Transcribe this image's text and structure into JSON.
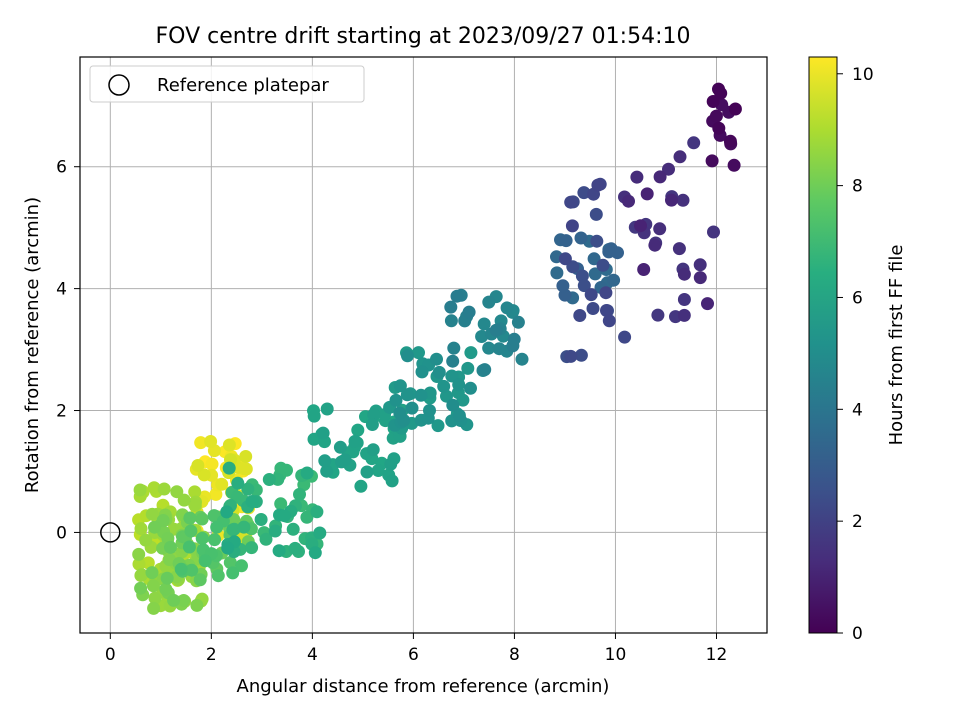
{
  "chart_data": {
    "type": "scatter",
    "title": "FOV centre drift starting at 2023/09/27 01:54:10",
    "xlabel": "Angular distance from reference (arcmin)",
    "ylabel": "Rotation from reference (arcmin)",
    "xlim": [
      -0.6,
      13.0
    ],
    "ylim": [
      -1.65,
      7.8
    ],
    "xticks": [
      0,
      2,
      4,
      6,
      8,
      10,
      12
    ],
    "yticks": [
      0,
      2,
      4,
      6
    ],
    "grid": true,
    "legend": {
      "placement": "top-left",
      "entries": [
        "Reference platepar"
      ]
    },
    "reference": {
      "x": 0,
      "y": 0,
      "label": "Reference platepar"
    },
    "colorbar": {
      "label": "Hours from first FF file",
      "colormap": "viridis",
      "range": [
        0,
        10.3
      ],
      "ticks": [
        0,
        2,
        4,
        6,
        8,
        10
      ]
    },
    "point_groups": [
      {
        "t": [
          0.0,
          0.35
        ],
        "x": [
          11.8,
          12.45
        ],
        "y": [
          5.85,
          7.4
        ],
        "n": 14
      },
      {
        "t": [
          1.0,
          1.7
        ],
        "x": [
          10.0,
          11.95
        ],
        "y": [
          3.5,
          6.4
        ],
        "n": 30
      },
      {
        "t": [
          2.0,
          2.6
        ],
        "x": [
          9.0,
          10.2
        ],
        "y": [
          2.45,
          5.8
        ],
        "n": 25
      },
      {
        "t": [
          3.0,
          3.6
        ],
        "x": [
          8.8,
          10.1
        ],
        "y": [
          3.8,
          4.9
        ],
        "n": 20
      },
      {
        "t": [
          4.3,
          4.8
        ],
        "x": [
          6.7,
          8.3
        ],
        "y": [
          2.6,
          3.9
        ],
        "n": 30
      },
      {
        "t": [
          5.0,
          5.6
        ],
        "x": [
          5.5,
          7.2
        ],
        "y": [
          1.7,
          3.0
        ],
        "n": 45
      },
      {
        "t": [
          5.7,
          6.1
        ],
        "x": [
          4.0,
          5.8
        ],
        "y": [
          0.75,
          2.05
        ],
        "n": 45
      },
      {
        "t": [
          6.2,
          7.0
        ],
        "x": [
          2.3,
          4.3
        ],
        "y": [
          -0.35,
          1.1
        ],
        "n": 60
      },
      {
        "t": [
          7.2,
          8.0
        ],
        "x": [
          1.1,
          2.8
        ],
        "y": [
          -0.8,
          0.3
        ],
        "n": 40
      },
      {
        "t": [
          8.0,
          8.8
        ],
        "x": [
          0.55,
          1.9
        ],
        "y": [
          -1.25,
          0.35
        ],
        "n": 65
      },
      {
        "t": [
          8.6,
          9.3
        ],
        "x": [
          0.55,
          1.8
        ],
        "y": [
          -0.8,
          0.8
        ],
        "n": 55
      },
      {
        "t": [
          9.6,
          10.3
        ],
        "x": [
          1.7,
          2.75
        ],
        "y": [
          -0.2,
          1.5
        ],
        "n": 50
      }
    ]
  }
}
